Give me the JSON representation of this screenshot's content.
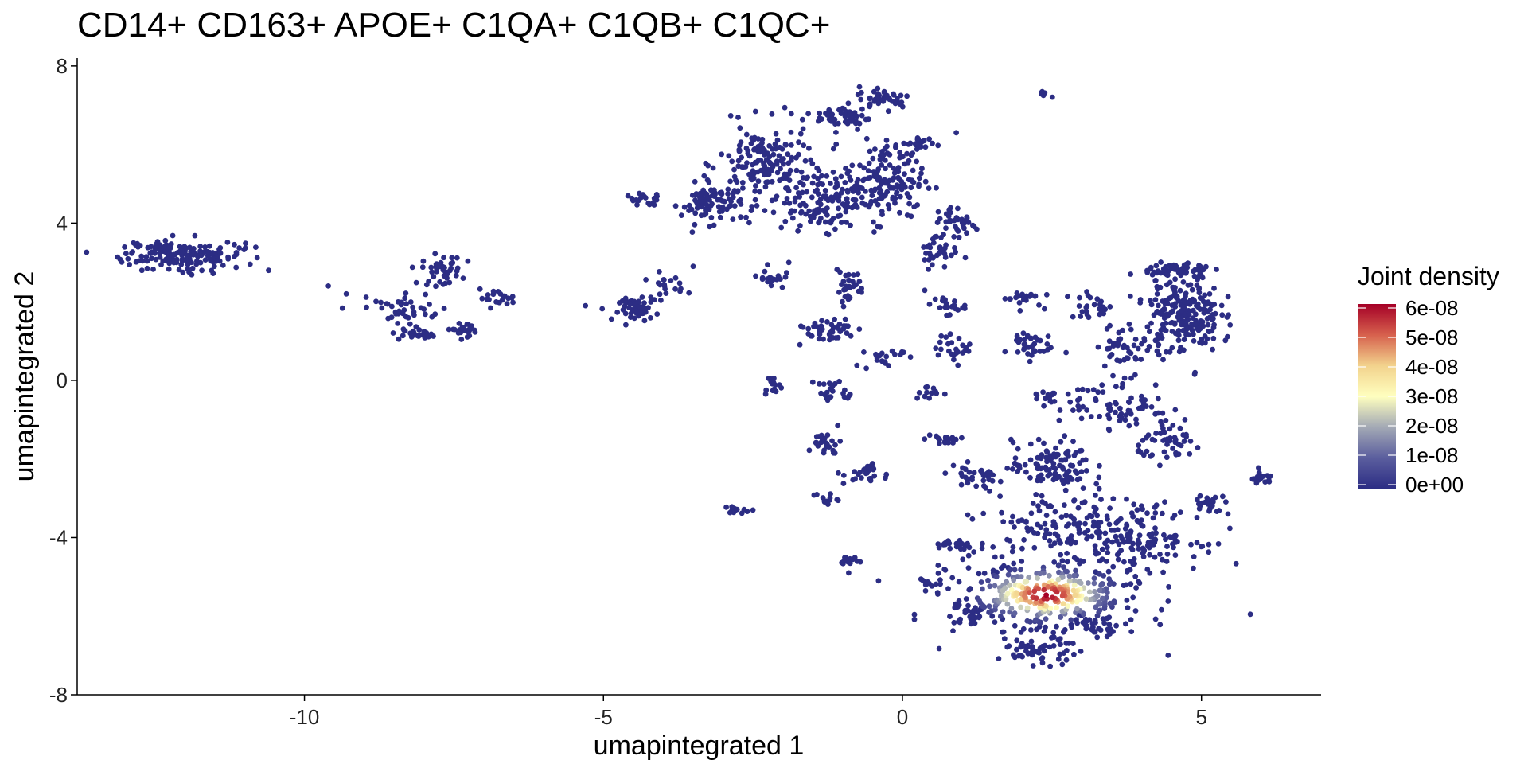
{
  "chart_data": {
    "type": "scatter",
    "title": "CD14+ CD163+ APOE+ C1QA+ C1QB+ C1QC+",
    "xlabel": "umapintegrated 1",
    "ylabel": "umapintegrated 2",
    "xlim": [
      -13.8,
      7
    ],
    "ylim": [
      -8,
      8.2
    ],
    "xticks": [
      -10,
      -5,
      0,
      5
    ],
    "yticks": [
      -8,
      -4,
      0,
      4,
      8
    ],
    "xtick_labels": [
      "-10",
      "-5",
      "0",
      "5"
    ],
    "ytick_labels": [
      "-8",
      "-4",
      "0",
      "4",
      "8"
    ],
    "grid": false,
    "point_color_low": "#2c2d84",
    "legend": {
      "title": "Joint density",
      "placement": "right",
      "labels": [
        "6e-08",
        "5e-08",
        "4e-08",
        "3e-08",
        "2e-08",
        "1e-08",
        "0e+00"
      ],
      "values": [
        6e-08,
        5e-08,
        4e-08,
        3e-08,
        2e-08,
        1e-08,
        0
      ],
      "colormap": [
        "#2c2d84",
        "#5b5e9e",
        "#a3a9b5",
        "#ffffbf",
        "#f2d28c",
        "#d6604d",
        "#a50026"
      ]
    },
    "clusters": [
      {
        "cx": -12.0,
        "cy": 3.2,
        "rx": 0.9,
        "ry": 0.35,
        "n": 170
      },
      {
        "cx": -8.4,
        "cy": 1.9,
        "rx": 0.6,
        "ry": 0.35,
        "n": 40
      },
      {
        "cx": -8.1,
        "cy": 1.2,
        "rx": 0.3,
        "ry": 0.15,
        "n": 25
      },
      {
        "cx": -7.7,
        "cy": 2.8,
        "rx": 0.3,
        "ry": 0.35,
        "n": 45
      },
      {
        "cx": -7.3,
        "cy": 1.3,
        "rx": 0.3,
        "ry": 0.15,
        "n": 25
      },
      {
        "cx": -6.8,
        "cy": 2.1,
        "rx": 0.3,
        "ry": 0.18,
        "n": 22
      },
      {
        "cx": -4.4,
        "cy": 1.8,
        "rx": 0.3,
        "ry": 0.25,
        "n": 55
      },
      {
        "cx": -4.0,
        "cy": 2.4,
        "rx": 0.3,
        "ry": 0.3,
        "n": 22
      },
      {
        "cx": -4.3,
        "cy": 4.6,
        "rx": 0.3,
        "ry": 0.15,
        "n": 20
      },
      {
        "cx": -3.2,
        "cy": 4.5,
        "rx": 0.45,
        "ry": 0.45,
        "n": 90
      },
      {
        "cx": -2.3,
        "cy": 5.5,
        "rx": 0.7,
        "ry": 0.9,
        "n": 160
      },
      {
        "cx": -1.3,
        "cy": 4.6,
        "rx": 0.9,
        "ry": 0.7,
        "n": 150
      },
      {
        "cx": -0.3,
        "cy": 5.1,
        "rx": 0.6,
        "ry": 0.9,
        "n": 140
      },
      {
        "cx": -1.0,
        "cy": 6.7,
        "rx": 0.4,
        "ry": 0.3,
        "n": 50
      },
      {
        "cx": -0.3,
        "cy": 7.2,
        "rx": 0.4,
        "ry": 0.25,
        "n": 45
      },
      {
        "cx": 0.3,
        "cy": 6.0,
        "rx": 0.25,
        "ry": 0.2,
        "n": 20
      },
      {
        "cx": 2.35,
        "cy": 7.3,
        "rx": 0.1,
        "ry": 0.08,
        "n": 8
      },
      {
        "cx": 0.9,
        "cy": 4.0,
        "rx": 0.35,
        "ry": 0.4,
        "n": 40
      },
      {
        "cx": 0.6,
        "cy": 3.3,
        "rx": 0.3,
        "ry": 0.4,
        "n": 30
      },
      {
        "cx": -2.2,
        "cy": 2.6,
        "rx": 0.2,
        "ry": 0.25,
        "n": 20
      },
      {
        "cx": -0.9,
        "cy": 2.4,
        "rx": 0.25,
        "ry": 0.35,
        "n": 28
      },
      {
        "cx": -1.3,
        "cy": 1.3,
        "rx": 0.5,
        "ry": 0.3,
        "n": 45
      },
      {
        "cx": -0.3,
        "cy": 0.6,
        "rx": 0.3,
        "ry": 0.3,
        "n": 20
      },
      {
        "cx": -2.2,
        "cy": -0.1,
        "rx": 0.15,
        "ry": 0.15,
        "n": 15
      },
      {
        "cx": -1.1,
        "cy": -0.3,
        "rx": 0.3,
        "ry": 0.3,
        "n": 22
      },
      {
        "cx": -1.3,
        "cy": -1.6,
        "rx": 0.25,
        "ry": 0.3,
        "n": 25
      },
      {
        "cx": -0.6,
        "cy": -2.4,
        "rx": 0.35,
        "ry": 0.25,
        "n": 25
      },
      {
        "cx": -1.3,
        "cy": -3.0,
        "rx": 0.2,
        "ry": 0.15,
        "n": 12
      },
      {
        "cx": -2.8,
        "cy": -3.3,
        "rx": 0.15,
        "ry": 0.1,
        "n": 12
      },
      {
        "cx": -0.9,
        "cy": -4.6,
        "rx": 0.2,
        "ry": 0.1,
        "n": 12
      },
      {
        "cx": 0.7,
        "cy": 1.9,
        "rx": 0.3,
        "ry": 0.2,
        "n": 20
      },
      {
        "cx": 0.9,
        "cy": 0.8,
        "rx": 0.3,
        "ry": 0.3,
        "n": 25
      },
      {
        "cx": 0.4,
        "cy": -0.3,
        "rx": 0.2,
        "ry": 0.2,
        "n": 12
      },
      {
        "cx": 0.7,
        "cy": -1.5,
        "rx": 0.3,
        "ry": 0.15,
        "n": 20
      },
      {
        "cx": 2.0,
        "cy": 2.1,
        "rx": 0.3,
        "ry": 0.2,
        "n": 22
      },
      {
        "cx": 2.1,
        "cy": 0.9,
        "rx": 0.35,
        "ry": 0.35,
        "n": 35
      },
      {
        "cx": 2.4,
        "cy": -0.4,
        "rx": 0.2,
        "ry": 0.2,
        "n": 15
      },
      {
        "cx": 2.5,
        "cy": -2.2,
        "rx": 0.6,
        "ry": 0.6,
        "n": 110
      },
      {
        "cx": 3.6,
        "cy": -0.6,
        "rx": 0.8,
        "ry": 0.6,
        "n": 75
      },
      {
        "cx": 3.8,
        "cy": 0.9,
        "rx": 0.5,
        "ry": 0.5,
        "n": 50
      },
      {
        "cx": 3.2,
        "cy": 1.9,
        "rx": 0.4,
        "ry": 0.3,
        "n": 25
      },
      {
        "cx": 4.7,
        "cy": 1.7,
        "rx": 0.55,
        "ry": 0.9,
        "n": 220
      },
      {
        "cx": 4.6,
        "cy": 2.8,
        "rx": 0.5,
        "ry": 0.2,
        "n": 60
      },
      {
        "cx": 4.5,
        "cy": -1.6,
        "rx": 0.5,
        "ry": 0.4,
        "n": 50
      },
      {
        "cx": 5.2,
        "cy": -3.2,
        "rx": 0.3,
        "ry": 0.3,
        "n": 22
      },
      {
        "cx": 6.0,
        "cy": -2.5,
        "rx": 0.2,
        "ry": 0.15,
        "n": 18
      },
      {
        "cx": 1.2,
        "cy": -2.5,
        "rx": 0.5,
        "ry": 0.3,
        "n": 35
      },
      {
        "cx": 0.9,
        "cy": -4.2,
        "rx": 0.35,
        "ry": 0.2,
        "n": 25
      },
      {
        "cx": 0.5,
        "cy": -5.2,
        "rx": 0.2,
        "ry": 0.2,
        "n": 12
      },
      {
        "cx": 1.1,
        "cy": -6.0,
        "rx": 0.3,
        "ry": 0.2,
        "n": 25
      },
      {
        "cx": 4.0,
        "cy": -4.0,
        "rx": 0.9,
        "ry": 0.7,
        "n": 130
      },
      {
        "cx": 2.7,
        "cy": -3.7,
        "rx": 1.2,
        "ry": 0.7,
        "n": 120
      },
      {
        "cx": 2.4,
        "cy": -5.5,
        "rx": 1.45,
        "ry": 0.9,
        "n": 360,
        "hot": true
      },
      {
        "cx": 2.3,
        "cy": -6.9,
        "rx": 0.6,
        "ry": 0.3,
        "n": 50
      },
      {
        "cx": 3.2,
        "cy": -6.2,
        "rx": 0.5,
        "ry": 0.25,
        "n": 35
      }
    ],
    "singletons": [
      [
        -9.6,
        2.4
      ],
      [
        -9.3,
        2.2
      ],
      [
        -5.3,
        1.9
      ],
      [
        -10.6,
        2.8
      ],
      [
        -2.5,
        -3.3
      ],
      [
        -0.4,
        -5.1
      ],
      [
        -0.9,
        -4.9
      ],
      [
        0.9,
        6.3
      ],
      [
        1.5,
        -6.0
      ],
      [
        2.0,
        -6.7
      ],
      [
        -3.5,
        2.9
      ],
      [
        -1.9,
        3.0
      ]
    ],
    "hotspot": {
      "x": 2.4,
      "y": -5.45,
      "sx": 0.95,
      "sy": 0.55,
      "peak": 6e-08
    }
  }
}
